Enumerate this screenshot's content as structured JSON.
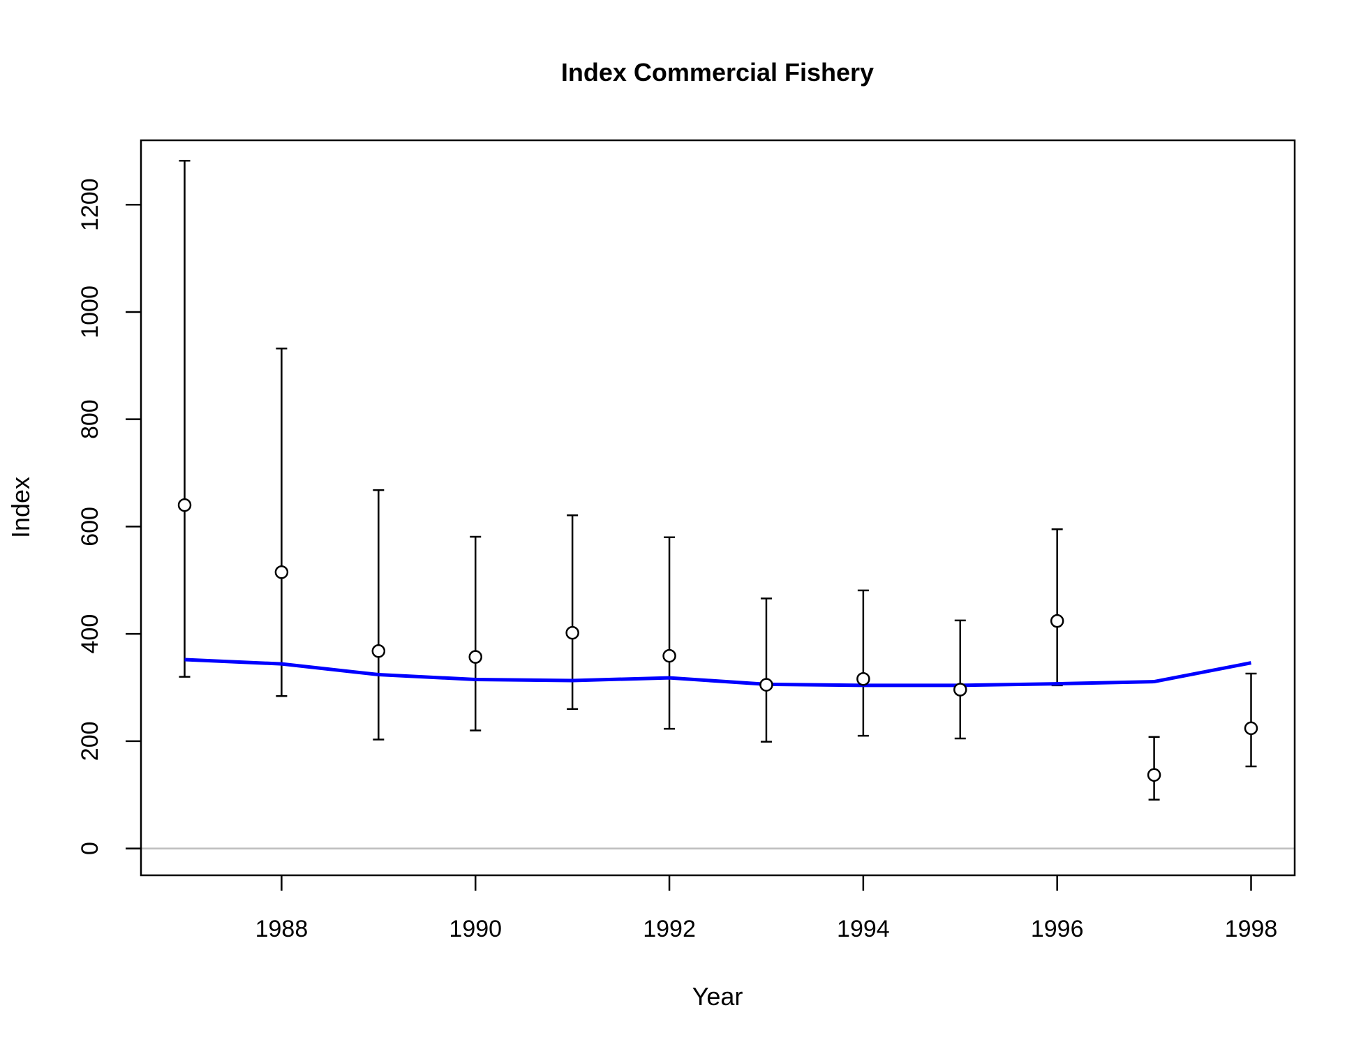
{
  "chart_data": {
    "type": "scatter",
    "title": "Index Commercial Fishery",
    "xlabel": "Year",
    "ylabel": "Index",
    "xlim": [
      1986.55,
      1998.45
    ],
    "ylim": [
      -50,
      1320
    ],
    "x_ticks": [
      1988,
      1990,
      1992,
      1994,
      1996,
      1998
    ],
    "y_ticks": [
      0,
      200,
      400,
      600,
      800,
      1000,
      1200
    ],
    "grid": false,
    "legend": "none",
    "reference_line": {
      "y": 0,
      "color": "#bebebe"
    },
    "observed": {
      "x": [
        1987,
        1988,
        1989,
        1990,
        1991,
        1992,
        1993,
        1994,
        1995,
        1996,
        1997,
        1998
      ],
      "values": [
        640,
        515,
        368,
        357,
        402,
        359,
        305,
        316,
        296,
        424,
        137,
        224
      ],
      "lower": [
        320,
        284,
        203,
        220,
        260,
        223,
        199,
        210,
        205,
        304,
        91,
        153
      ],
      "upper": [
        1282,
        932,
        668,
        581,
        621,
        580,
        466,
        481,
        425,
        595,
        208,
        326
      ],
      "marker": "open-circle",
      "color": "#000000"
    },
    "fitted": {
      "x": [
        1987,
        1988,
        1989,
        1990,
        1991,
        1992,
        1993,
        1994,
        1995,
        1996,
        1997,
        1998
      ],
      "values": [
        352,
        344,
        324,
        315,
        313,
        318,
        306,
        304,
        304,
        307,
        311,
        346
      ],
      "color": "#0000ff"
    }
  }
}
